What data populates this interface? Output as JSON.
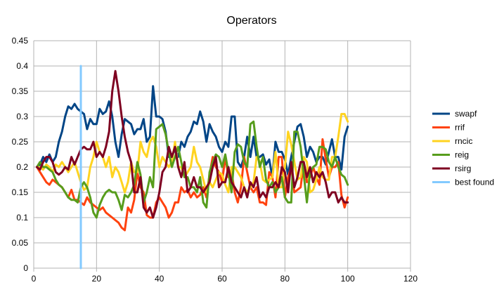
{
  "chart_data": {
    "type": "line",
    "title": "Operators",
    "xlabel": "",
    "ylabel": "",
    "xlim": [
      0,
      120
    ],
    "ylim": [
      0,
      0.45
    ],
    "x_ticks": [
      "0",
      "20",
      "40",
      "60",
      "80",
      "100",
      "120"
    ],
    "y_ticks": [
      "0",
      "0.05",
      "0.1",
      "0.15",
      "0.2",
      "0.25",
      "0.3",
      "0.35",
      "0.4",
      "0.45"
    ],
    "grid": true,
    "legend_position": "right",
    "series": [
      {
        "name": "swapf",
        "color": "#004586",
        "x": [
          1,
          2,
          3,
          4,
          5,
          6,
          7,
          8,
          9,
          10,
          11,
          12,
          13,
          14,
          15,
          16,
          17,
          18,
          19,
          20,
          21,
          22,
          23,
          24,
          25,
          26,
          27,
          28,
          29,
          30,
          31,
          32,
          33,
          34,
          35,
          36,
          37,
          38,
          39,
          40,
          41,
          42,
          43,
          44,
          45,
          46,
          47,
          48,
          49,
          50,
          51,
          52,
          53,
          54,
          55,
          56,
          57,
          58,
          59,
          60,
          61,
          62,
          63,
          64,
          65,
          66,
          67,
          68,
          69,
          70,
          71,
          72,
          73,
          74,
          75,
          76,
          77,
          78,
          79,
          80,
          81,
          82,
          83,
          84,
          85,
          86,
          87,
          88,
          89,
          90,
          91,
          92,
          93,
          94,
          95,
          96,
          97,
          98,
          99,
          100
        ],
        "values": [
          0.2,
          0.205,
          0.22,
          0.21,
          0.225,
          0.21,
          0.22,
          0.25,
          0.27,
          0.3,
          0.32,
          0.315,
          0.325,
          0.315,
          0.31,
          0.305,
          0.275,
          0.295,
          0.285,
          0.285,
          0.315,
          0.305,
          0.31,
          0.33,
          0.3,
          0.25,
          0.22,
          0.265,
          0.295,
          0.29,
          0.285,
          0.265,
          0.275,
          0.275,
          0.295,
          0.25,
          0.26,
          0.36,
          0.3,
          0.3,
          0.295,
          0.27,
          0.22,
          0.22,
          0.235,
          0.22,
          0.25,
          0.24,
          0.26,
          0.27,
          0.29,
          0.285,
          0.31,
          0.29,
          0.25,
          0.285,
          0.27,
          0.26,
          0.24,
          0.23,
          0.25,
          0.24,
          0.3,
          0.3,
          0.21,
          0.2,
          0.22,
          0.26,
          0.22,
          0.26,
          0.22,
          0.22,
          0.225,
          0.205,
          0.215,
          0.18,
          0.25,
          0.23,
          0.23,
          0.215,
          0.185,
          0.22,
          0.25,
          0.28,
          0.285,
          0.26,
          0.22,
          0.24,
          0.23,
          0.21,
          0.22,
          0.22,
          0.205,
          0.23,
          0.255,
          0.22,
          0.22,
          0.195,
          0.26,
          0.28
        ]
      },
      {
        "name": "rrif",
        "color": "#ff420e",
        "x": [
          1,
          2,
          3,
          4,
          5,
          6,
          7,
          8,
          9,
          10,
          11,
          12,
          13,
          14,
          15,
          16,
          17,
          18,
          19,
          20,
          21,
          22,
          23,
          24,
          25,
          26,
          27,
          28,
          29,
          30,
          31,
          32,
          33,
          34,
          35,
          36,
          37,
          38,
          39,
          40,
          41,
          42,
          43,
          44,
          45,
          46,
          47,
          48,
          49,
          50,
          51,
          52,
          53,
          54,
          55,
          56,
          57,
          58,
          59,
          60,
          61,
          62,
          63,
          64,
          65,
          66,
          67,
          68,
          69,
          70,
          71,
          72,
          73,
          74,
          75,
          76,
          77,
          78,
          79,
          80,
          81,
          82,
          83,
          84,
          85,
          86,
          87,
          88,
          89,
          90,
          91,
          92,
          93,
          94,
          95,
          96,
          97,
          98,
          99,
          100
        ],
        "values": [
          0.2,
          0.19,
          0.18,
          0.17,
          0.165,
          0.175,
          0.17,
          0.165,
          0.16,
          0.15,
          0.14,
          0.155,
          0.135,
          0.135,
          0.13,
          0.125,
          0.14,
          0.13,
          0.125,
          0.12,
          0.115,
          0.12,
          0.11,
          0.105,
          0.1,
          0.095,
          0.09,
          0.08,
          0.075,
          0.12,
          0.11,
          0.135,
          0.19,
          0.16,
          0.15,
          0.105,
          0.1,
          0.1,
          0.13,
          0.14,
          0.13,
          0.12,
          0.1,
          0.11,
          0.13,
          0.13,
          0.16,
          0.15,
          0.155,
          0.14,
          0.15,
          0.14,
          0.145,
          0.16,
          0.14,
          0.185,
          0.22,
          0.2,
          0.19,
          0.17,
          0.22,
          0.18,
          0.19,
          0.15,
          0.13,
          0.16,
          0.22,
          0.19,
          0.16,
          0.15,
          0.16,
          0.13,
          0.13,
          0.125,
          0.19,
          0.18,
          0.14,
          0.22,
          0.22,
          0.14,
          0.18,
          0.2,
          0.15,
          0.155,
          0.16,
          0.21,
          0.17,
          0.18,
          0.2,
          0.18,
          0.165,
          0.255,
          0.215,
          0.18,
          0.2,
          0.2,
          0.21,
          0.145,
          0.12,
          0.14
        ]
      },
      {
        "name": "rncic",
        "color": "#ffd320",
        "x": [
          1,
          2,
          3,
          4,
          5,
          6,
          7,
          8,
          9,
          10,
          11,
          12,
          13,
          14,
          15,
          16,
          17,
          18,
          19,
          20,
          21,
          22,
          23,
          24,
          25,
          26,
          27,
          28,
          29,
          30,
          31,
          32,
          33,
          34,
          35,
          36,
          37,
          38,
          39,
          40,
          41,
          42,
          43,
          44,
          45,
          46,
          47,
          48,
          49,
          50,
          51,
          52,
          53,
          54,
          55,
          56,
          57,
          58,
          59,
          60,
          61,
          62,
          63,
          64,
          65,
          66,
          67,
          68,
          69,
          70,
          71,
          72,
          73,
          74,
          75,
          76,
          77,
          78,
          79,
          80,
          81,
          82,
          83,
          84,
          85,
          86,
          87,
          88,
          89,
          90,
          91,
          92,
          93,
          94,
          95,
          96,
          97,
          98,
          99,
          100
        ],
        "values": [
          0.2,
          0.2,
          0.195,
          0.205,
          0.2,
          0.19,
          0.205,
          0.2,
          0.21,
          0.2,
          0.19,
          0.2,
          0.21,
          0.19,
          0.17,
          0.155,
          0.16,
          0.2,
          0.22,
          0.25,
          0.23,
          0.22,
          0.2,
          0.22,
          0.18,
          0.2,
          0.19,
          0.17,
          0.15,
          0.17,
          0.21,
          0.19,
          0.19,
          0.25,
          0.23,
          0.22,
          0.25,
          0.26,
          0.24,
          0.2,
          0.22,
          0.21,
          0.2,
          0.21,
          0.25,
          0.2,
          0.2,
          0.18,
          0.19,
          0.2,
          0.24,
          0.21,
          0.2,
          0.175,
          0.15,
          0.17,
          0.16,
          0.175,
          0.19,
          0.185,
          0.165,
          0.15,
          0.2,
          0.2,
          0.19,
          0.18,
          0.16,
          0.15,
          0.16,
          0.17,
          0.22,
          0.21,
          0.175,
          0.17,
          0.175,
          0.18,
          0.23,
          0.16,
          0.16,
          0.2,
          0.27,
          0.245,
          0.21,
          0.175,
          0.18,
          0.22,
          0.21,
          0.15,
          0.155,
          0.175,
          0.2,
          0.18,
          0.175,
          0.175,
          0.22,
          0.22,
          0.26,
          0.305,
          0.305,
          0.29
        ]
      },
      {
        "name": "reig",
        "color": "#579d1c",
        "x": [
          1,
          2,
          3,
          4,
          5,
          6,
          7,
          8,
          9,
          10,
          11,
          12,
          13,
          14,
          15,
          16,
          17,
          18,
          19,
          20,
          21,
          22,
          23,
          24,
          25,
          26,
          27,
          28,
          29,
          30,
          31,
          32,
          33,
          34,
          35,
          36,
          37,
          38,
          39,
          40,
          41,
          42,
          43,
          44,
          45,
          46,
          47,
          48,
          49,
          50,
          51,
          52,
          53,
          54,
          55,
          56,
          57,
          58,
          59,
          60,
          61,
          62,
          63,
          64,
          65,
          66,
          67,
          68,
          69,
          70,
          71,
          72,
          73,
          74,
          75,
          76,
          77,
          78,
          79,
          80,
          81,
          82,
          83,
          84,
          85,
          86,
          87,
          88,
          89,
          90,
          91,
          92,
          93,
          94,
          95,
          96,
          97,
          98,
          99,
          100
        ],
        "values": [
          0.2,
          0.21,
          0.2,
          0.2,
          0.195,
          0.19,
          0.175,
          0.165,
          0.16,
          0.15,
          0.14,
          0.135,
          0.135,
          0.13,
          0.16,
          0.17,
          0.16,
          0.14,
          0.11,
          0.1,
          0.125,
          0.14,
          0.15,
          0.155,
          0.15,
          0.15,
          0.135,
          0.115,
          0.145,
          0.14,
          0.15,
          0.165,
          0.21,
          0.185,
          0.13,
          0.15,
          0.18,
          0.16,
          0.275,
          0.28,
          0.285,
          0.265,
          0.23,
          0.2,
          0.22,
          0.24,
          0.21,
          0.18,
          0.18,
          0.16,
          0.16,
          0.15,
          0.18,
          0.13,
          0.12,
          0.19,
          0.21,
          0.225,
          0.22,
          0.2,
          0.225,
          0.19,
          0.15,
          0.23,
          0.245,
          0.24,
          0.21,
          0.2,
          0.285,
          0.29,
          0.24,
          0.2,
          0.22,
          0.175,
          0.16,
          0.17,
          0.15,
          0.16,
          0.18,
          0.14,
          0.13,
          0.13,
          0.27,
          0.27,
          0.24,
          0.185,
          0.13,
          0.19,
          0.2,
          0.205,
          0.24,
          0.24,
          0.235,
          0.21,
          0.2,
          0.22,
          0.2,
          0.185,
          0.18,
          0.165
        ]
      },
      {
        "name": "rsirg",
        "color": "#7e0021",
        "x": [
          1,
          2,
          3,
          4,
          5,
          6,
          7,
          8,
          9,
          10,
          11,
          12,
          13,
          14,
          15,
          16,
          17,
          18,
          19,
          20,
          21,
          22,
          23,
          24,
          25,
          26,
          27,
          28,
          29,
          30,
          31,
          32,
          33,
          34,
          35,
          36,
          37,
          38,
          39,
          40,
          41,
          42,
          43,
          44,
          45,
          46,
          47,
          48,
          49,
          50,
          51,
          52,
          53,
          54,
          55,
          56,
          57,
          58,
          59,
          60,
          61,
          62,
          63,
          64,
          65,
          66,
          67,
          68,
          69,
          70,
          71,
          72,
          73,
          74,
          75,
          76,
          77,
          78,
          79,
          80,
          81,
          82,
          83,
          84,
          85,
          86,
          87,
          88,
          89,
          90,
          91,
          92,
          93,
          94,
          95,
          96,
          97,
          98,
          99,
          100
        ],
        "values": [
          0.2,
          0.195,
          0.21,
          0.22,
          0.22,
          0.21,
          0.19,
          0.185,
          0.19,
          0.2,
          0.195,
          0.22,
          0.205,
          0.22,
          0.235,
          0.24,
          0.235,
          0.235,
          0.25,
          0.22,
          0.23,
          0.22,
          0.24,
          0.27,
          0.35,
          0.39,
          0.35,
          0.3,
          0.26,
          0.23,
          0.21,
          0.15,
          0.15,
          0.18,
          0.12,
          0.11,
          0.12,
          0.1,
          0.12,
          0.15,
          0.19,
          0.2,
          0.24,
          0.22,
          0.24,
          0.2,
          0.18,
          0.21,
          0.15,
          0.16,
          0.18,
          0.16,
          0.16,
          0.15,
          0.16,
          0.17,
          0.2,
          0.22,
          0.16,
          0.17,
          0.17,
          0.2,
          0.17,
          0.16,
          0.15,
          0.14,
          0.16,
          0.14,
          0.17,
          0.16,
          0.18,
          0.14,
          0.15,
          0.14,
          0.16,
          0.16,
          0.17,
          0.16,
          0.2,
          0.19,
          0.15,
          0.21,
          0.16,
          0.18,
          0.21,
          0.21,
          0.18,
          0.2,
          0.17,
          0.19,
          0.18,
          0.19,
          0.17,
          0.14,
          0.15,
          0.15,
          0.13,
          0.14,
          0.13,
          0.13
        ]
      },
      {
        "name": "best found",
        "color": "#83caff",
        "type": "vline",
        "x": [
          15,
          15
        ],
        "values": [
          0,
          0.4
        ]
      }
    ]
  }
}
